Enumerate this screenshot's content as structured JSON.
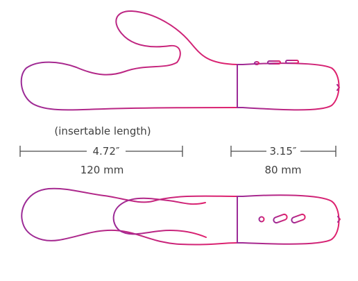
{
  "colors": {
    "outline_start": "#9b2a96",
    "outline_end": "#e0216d",
    "dimension_line": "#4a4a4a",
    "text": "#3f3f3f",
    "background": "#ffffff"
  },
  "labels": {
    "insertable": "(insertable length)",
    "length_in": "4.72″",
    "length_mm": "120 mm",
    "handle_in": "3.15″",
    "handle_mm": "80 mm"
  }
}
